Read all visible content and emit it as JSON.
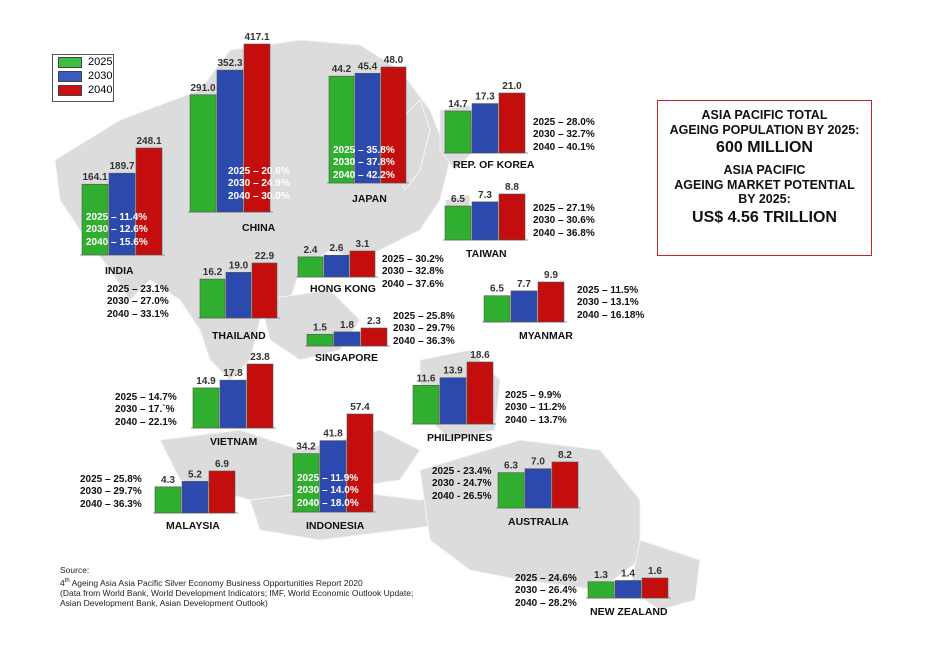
{
  "legend": {
    "items": [
      {
        "label": "2025",
        "color": "#3fbf3f"
      },
      {
        "label": "2030",
        "color": "#3a5bbf"
      },
      {
        "label": "2040",
        "color": "#cc1111"
      }
    ]
  },
  "colors": {
    "y2025": "#2fae2f",
    "y2030": "#2c49ad",
    "y2040": "#c40e0e",
    "map": "#dcdcdc",
    "box_border": "#c62828"
  },
  "info_box": {
    "line1": "ASIA PACIFIC TOTAL",
    "line2": "AGEING POPULATION BY 2025:",
    "line3": "600 MILLION",
    "line4": "ASIA PACIFIC",
    "line5": "AGEING MARKET POTENTIAL",
    "line6": "BY 2025:",
    "line7": "US$ 4.56 TRILLION"
  },
  "source": {
    "line1": "Source:",
    "line2_sup": "th",
    "line2_pre": "4",
    "line2": " Ageing Asia Asia Pacific Silver Economy Business Opportunities Report 2020",
    "line3": "(Data from World Bank, World Development Indicators; IMF, World Economic Outlook Update;",
    "line4": "Asian Development Bank, Asian Development Outlook)"
  },
  "chart_data": {
    "type": "bar",
    "series_names": [
      "2025",
      "2030",
      "2040"
    ],
    "countries": [
      {
        "name": "INDIA",
        "values": [
          164.1,
          189.7,
          248.1
        ],
        "pct": [
          "2025 – 11.4%",
          "2030 – 12.6%",
          "2040 – 15.6%"
        ]
      },
      {
        "name": "CHINA",
        "values": [
          291.0,
          352.3,
          417.1
        ],
        "pct": [
          "2025 – 20.6%",
          "2030 – 24.9%",
          "2040 – 30.0%"
        ]
      },
      {
        "name": "JAPAN",
        "values": [
          44.2,
          45.4,
          48.0
        ],
        "pct": [
          "2025 – 35.8%",
          "2030 – 37.8%",
          "2040 – 42.2%"
        ]
      },
      {
        "name": "REP. OF KOREA",
        "values": [
          14.7,
          17.3,
          21.0
        ],
        "pct": [
          "2025 – 28.0%",
          "2030 – 32.7%",
          "2040 – 40.1%"
        ]
      },
      {
        "name": "TAIWAN",
        "values": [
          6.5,
          7.3,
          8.8
        ],
        "pct": [
          "2025 – 27.1%",
          "2030 – 30.6%",
          "2040 – 36.8%"
        ]
      },
      {
        "name": "HONG KONG",
        "values": [
          2.4,
          2.6,
          3.1
        ],
        "pct": [
          "2025 – 30.2%",
          "2030 – 32.8%",
          "2040 – 37.6%"
        ]
      },
      {
        "name": "THAILAND",
        "values": [
          16.2,
          19.0,
          22.9
        ],
        "pct": [
          "2025 – 23.1%",
          "2030 – 27.0%",
          "2040 – 33.1%"
        ]
      },
      {
        "name": "MYANMAR",
        "values": [
          6.5,
          7.7,
          9.9
        ],
        "pct": [
          "2025 – 11.5%",
          "2030 – 13.1%",
          "2040 – 16.18%"
        ]
      },
      {
        "name": "SINGAPORE",
        "values": [
          1.5,
          1.8,
          2.3
        ],
        "pct": [
          "2025 – 25.8%",
          "2030 – 29.7%",
          "2040 – 36.3%"
        ]
      },
      {
        "name": "VIETNAM",
        "values": [
          14.9,
          17.8,
          23.8
        ],
        "pct": [
          "2025 – 14.7%",
          "2030 – 17.`%",
          "2040 – 22.1%"
        ]
      },
      {
        "name": "PHILIPPINES",
        "values": [
          11.6,
          13.9,
          18.6
        ],
        "pct": [
          "2025 – 9.9%",
          "2030 – 11.2%",
          "2040 – 13.7%"
        ]
      },
      {
        "name": "MALAYSIA",
        "values": [
          4.3,
          5.2,
          6.9
        ],
        "pct": [
          "2025 – 25.8%",
          "2030 – 29.7%",
          "2040 – 36.3%"
        ]
      },
      {
        "name": "INDONESIA",
        "values": [
          34.2,
          41.8,
          57.4
        ],
        "pct": [
          "2025 – 11.9%",
          "2030 – 14.0%",
          "2040 – 18.0%"
        ]
      },
      {
        "name": "AUSTRALIA",
        "values": [
          6.3,
          7.0,
          8.2
        ],
        "pct": [
          "2025 - 23.4%",
          "2030 - 24.7%",
          "2040 - 26.5%"
        ]
      },
      {
        "name": "NEW ZEALAND",
        "values": [
          1.3,
          1.4,
          1.6
        ],
        "pct": [
          "2025 – 24.6%",
          "2030 – 26.4%",
          "2040 – 28.2%"
        ]
      }
    ]
  }
}
